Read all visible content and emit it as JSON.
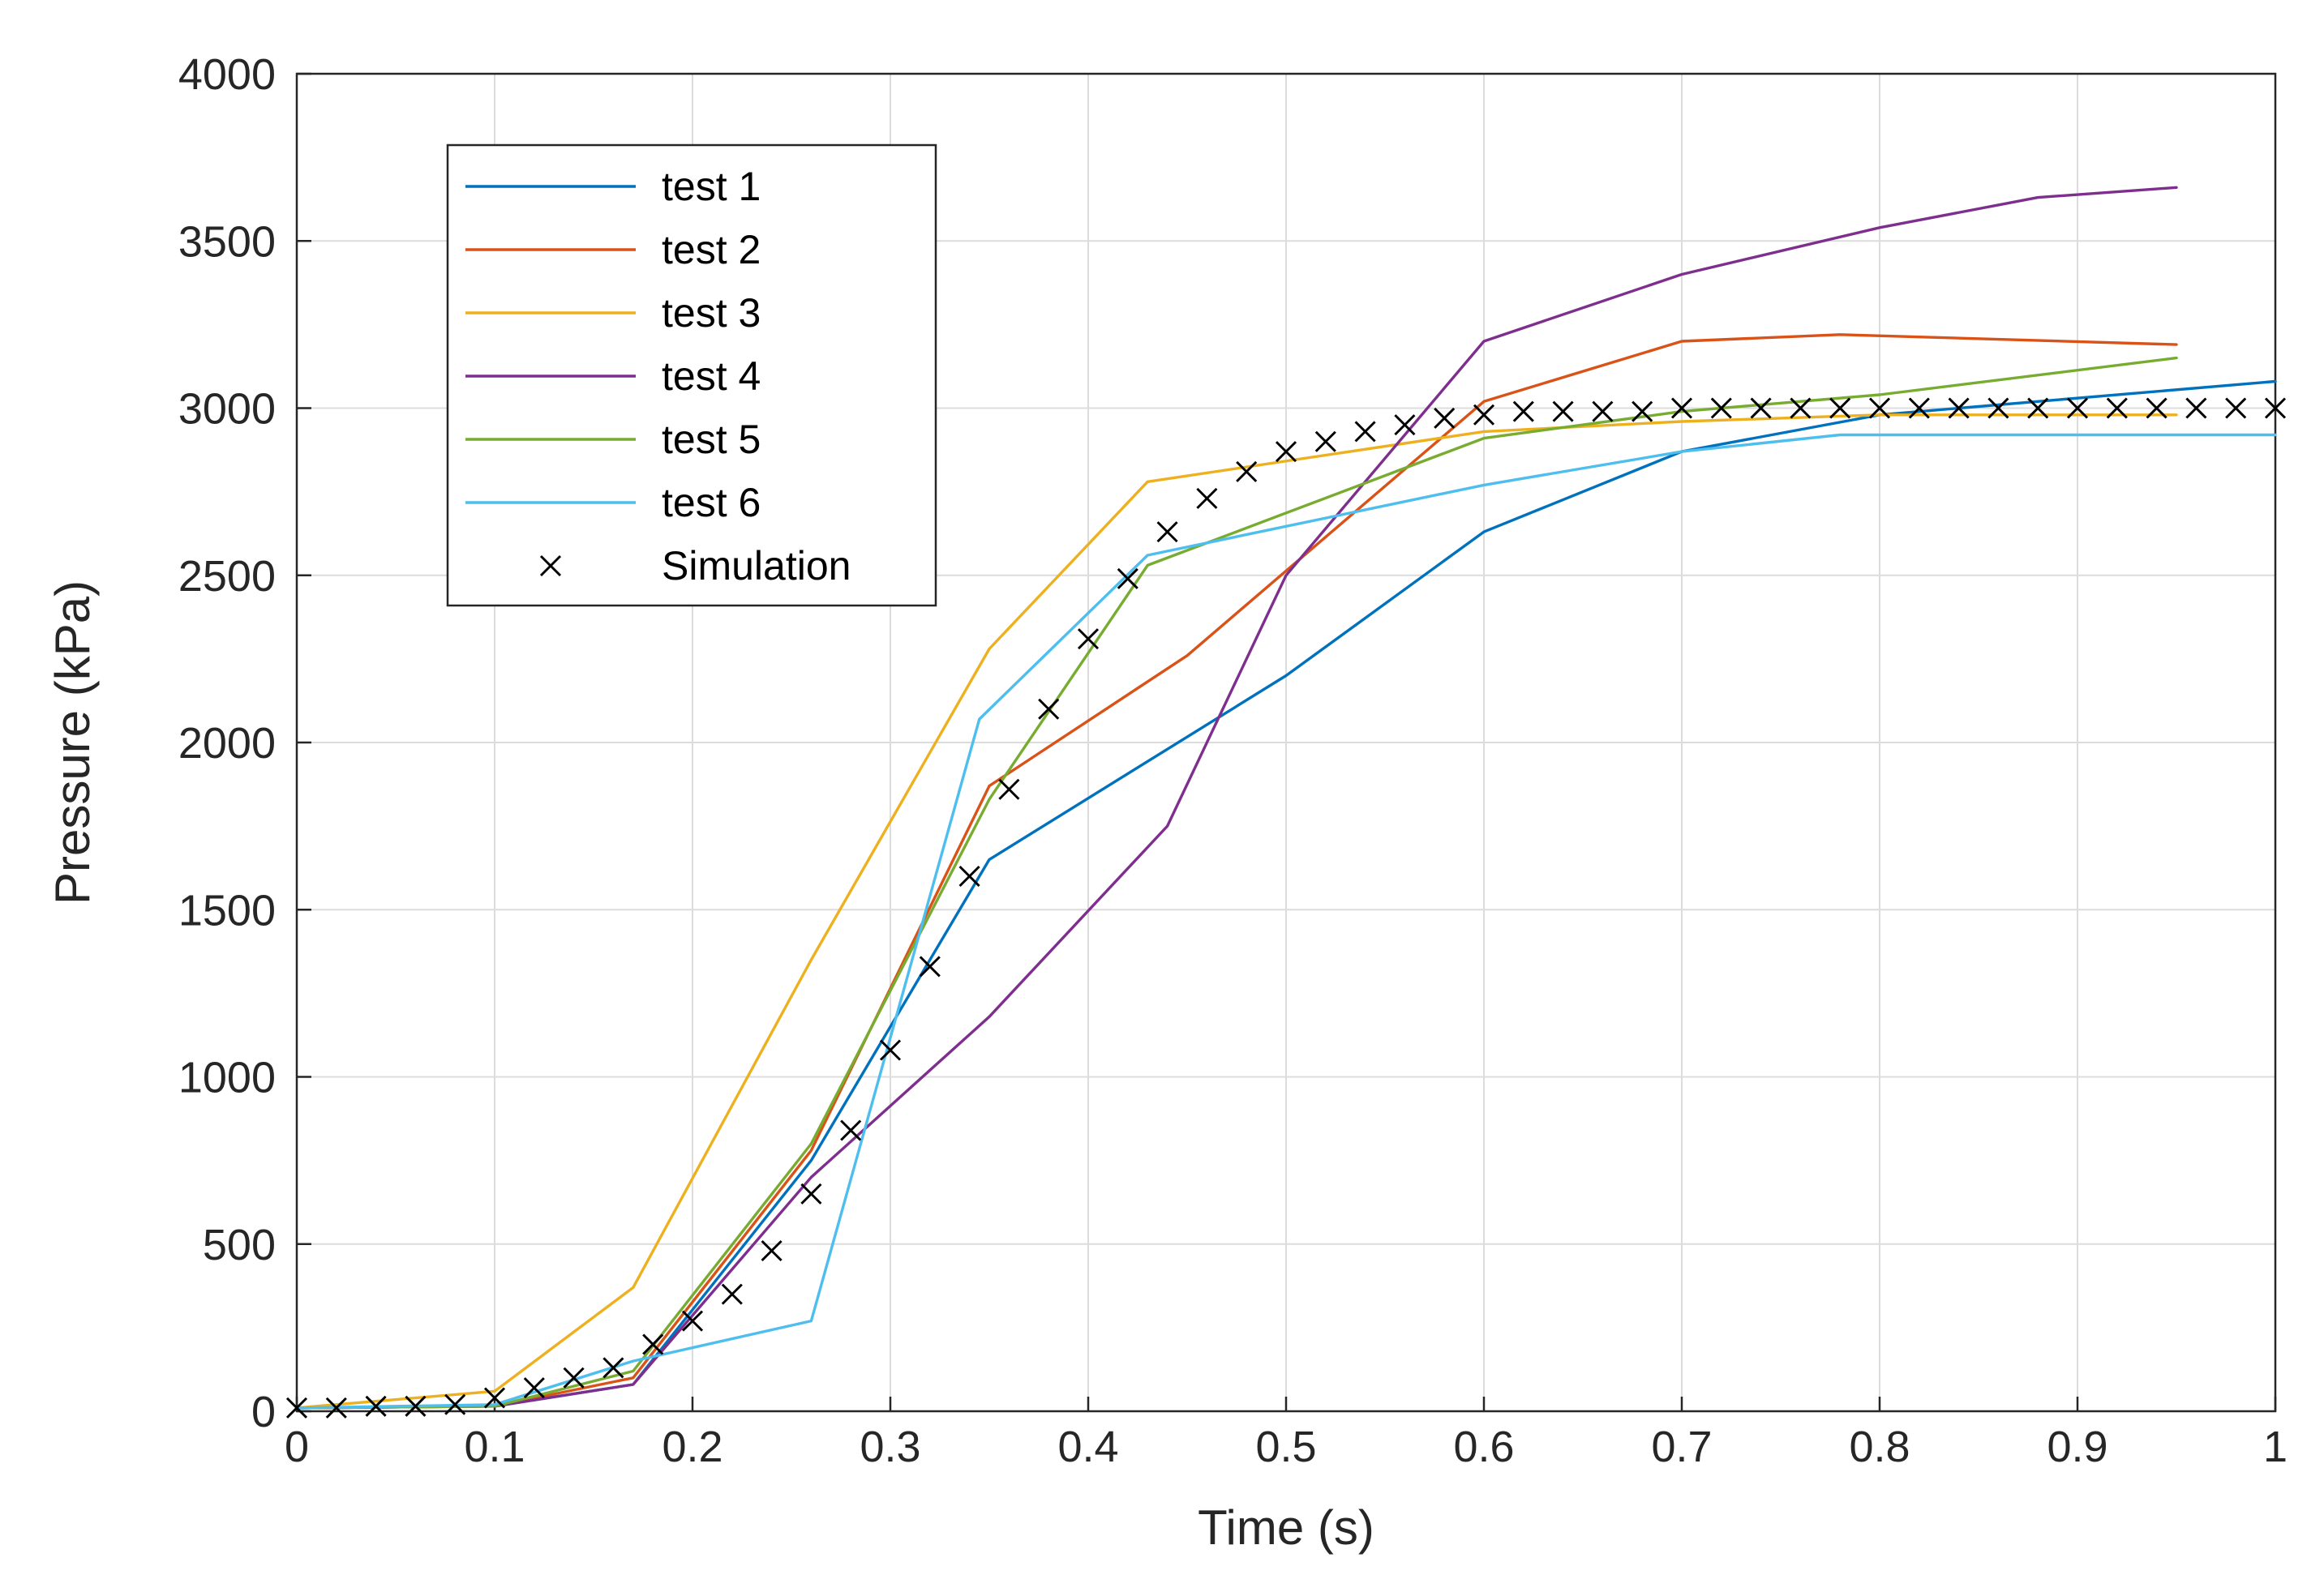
{
  "chart_data": {
    "type": "line",
    "title": "",
    "xlabel": "Time (s)",
    "ylabel": "Pressure (kPa)",
    "xlim": [
      0,
      1
    ],
    "ylim": [
      0,
      4000
    ],
    "grid": true,
    "legend_position": "top-left",
    "x_ticks": [
      "0",
      "0.1",
      "0.2",
      "0.3",
      "0.4",
      "0.5",
      "0.6",
      "0.7",
      "0.8",
      "0.9",
      "1"
    ],
    "y_ticks": [
      "0",
      "500",
      "1000",
      "1500",
      "2000",
      "2500",
      "3000",
      "3500",
      "4000"
    ],
    "series": [
      {
        "name": "test 1",
        "color": "#0072BD",
        "x": [
          0,
          0.1,
          0.17,
          0.26,
          0.35,
          0.5,
          0.6,
          0.7,
          0.8,
          1.0
        ],
        "y": [
          10,
          15,
          80,
          750,
          1650,
          2200,
          2630,
          2870,
          2980,
          3080
        ]
      },
      {
        "name": "test 2",
        "color": "#D95319",
        "x": [
          0,
          0.1,
          0.17,
          0.26,
          0.35,
          0.45,
          0.6,
          0.7,
          0.78,
          0.95
        ],
        "y": [
          10,
          15,
          100,
          780,
          1870,
          2260,
          3020,
          3200,
          3220,
          3190
        ]
      },
      {
        "name": "test 3",
        "color": "#EDB120",
        "x": [
          0,
          0.1,
          0.17,
          0.26,
          0.35,
          0.43,
          0.6,
          0.7,
          0.8,
          0.95
        ],
        "y": [
          10,
          60,
          370,
          1350,
          2280,
          2780,
          2930,
          2960,
          2980,
          2980
        ]
      },
      {
        "name": "test 4",
        "color": "#7E2F8E",
        "x": [
          0,
          0.1,
          0.17,
          0.26,
          0.35,
          0.44,
          0.5,
          0.6,
          0.7,
          0.8,
          0.88,
          0.95
        ],
        "y": [
          10,
          15,
          80,
          700,
          1180,
          1750,
          2500,
          3200,
          3400,
          3540,
          3630,
          3660
        ]
      },
      {
        "name": "test 5",
        "color": "#77AC30",
        "x": [
          0,
          0.1,
          0.17,
          0.26,
          0.35,
          0.43,
          0.6,
          0.7,
          0.8,
          0.95
        ],
        "y": [
          10,
          15,
          120,
          800,
          1830,
          2530,
          2910,
          2990,
          3040,
          3150
        ]
      },
      {
        "name": "test 6",
        "color": "#4DBEEE",
        "x": [
          0,
          0.1,
          0.17,
          0.26,
          0.345,
          0.43,
          0.6,
          0.7,
          0.78,
          1.0
        ],
        "y": [
          10,
          20,
          150,
          270,
          2070,
          2560,
          2770,
          2870,
          2920,
          2920
        ]
      }
    ],
    "scatter": {
      "name": "Simulation",
      "marker": "x",
      "color": "#000000",
      "x": [
        0,
        0.02,
        0.04,
        0.06,
        0.08,
        0.1,
        0.12,
        0.14,
        0.16,
        0.18,
        0.2,
        0.22,
        0.24,
        0.26,
        0.28,
        0.3,
        0.32,
        0.34,
        0.36,
        0.38,
        0.4,
        0.42,
        0.44,
        0.46,
        0.48,
        0.5,
        0.52,
        0.54,
        0.56,
        0.58,
        0.6,
        0.62,
        0.64,
        0.66,
        0.68,
        0.7,
        0.72,
        0.74,
        0.76,
        0.78,
        0.8,
        0.82,
        0.84,
        0.86,
        0.88,
        0.9,
        0.92,
        0.94,
        0.96,
        0.98,
        1.0
      ],
      "y": [
        10,
        10,
        15,
        15,
        20,
        40,
        70,
        100,
        130,
        200,
        270,
        350,
        480,
        650,
        840,
        1080,
        1330,
        1600,
        1860,
        2100,
        2310,
        2490,
        2630,
        2730,
        2810,
        2870,
        2900,
        2930,
        2950,
        2970,
        2980,
        2990,
        2990,
        2990,
        2990,
        3000,
        3000,
        3000,
        3000,
        3000,
        3000,
        3000,
        3000,
        3000,
        3000,
        3000,
        3000,
        3000,
        3000,
        3000,
        3000
      ]
    },
    "legend": [
      "test 1",
      "test 2",
      "test 3",
      "test 4",
      "test 5",
      "test 6",
      "Simulation"
    ]
  }
}
